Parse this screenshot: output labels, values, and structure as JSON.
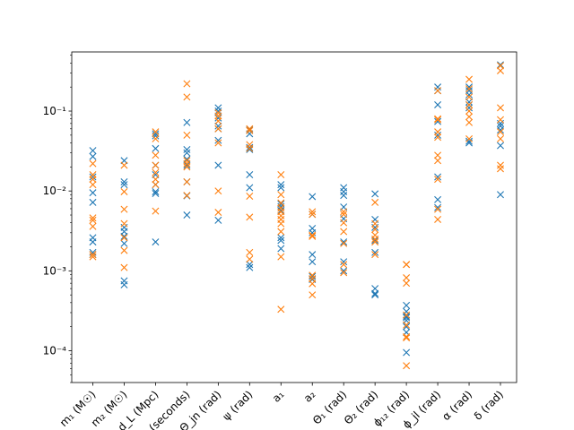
{
  "chart_data": {
    "type": "scatter",
    "title": "",
    "xlabel": "",
    "ylabel": "",
    "yscale": "log",
    "ylim": [
      4e-05,
      0.55
    ],
    "grid": false,
    "legend": "none",
    "categories": [
      "m₁ (M☉)",
      "m₂ (M☉)",
      "d_L (Mpc)",
      "t_c (seconds)",
      "Θ_jn (rad)",
      "ψ (rad)",
      "a₁",
      "a₂",
      "Θ₁ (rad)",
      "Θ₂ (rad)",
      "ϕ₁₂ (rad)",
      "ϕ_jl (rad)",
      "α (rad)",
      "δ (rad)"
    ],
    "ytick_labels": [
      {
        "value": 0.0001,
        "label": "10⁻⁴"
      },
      {
        "value": 0.001,
        "label": "10⁻³"
      },
      {
        "value": 0.01,
        "label": "10⁻²"
      },
      {
        "value": 0.1,
        "label": "10⁻¹"
      }
    ],
    "series": [
      {
        "color": "#1f77b4",
        "points": [
          [
            [
              0.032,
              0.027,
              0.015,
              0.0095,
              0.0072,
              0.0026,
              0.0023,
              0.0017,
              0.0016
            ]
          ],
          [
            [
              0.024,
              0.013,
              0.012,
              0.0035,
              0.0031,
              0.0027,
              0.0022,
              0.00075,
              0.00067
            ]
          ],
          [
            [
              0.052,
              0.049,
              0.034,
              0.021,
              0.016,
              0.012,
              0.0098,
              0.0093,
              0.0023
            ]
          ],
          [
            [
              0.072,
              0.033,
              0.03,
              0.025,
              0.021,
              0.013,
              0.0087,
              0.005
            ]
          ],
          [
            [
              0.11,
              0.1,
              0.082,
              0.065,
              0.06,
              0.043,
              0.021,
              0.0043
            ]
          ],
          [
            [
              0.058,
              0.052,
              0.035,
              0.033,
              0.016,
              0.011,
              0.0012,
              0.0011
            ]
          ],
          [
            [
              0.012,
              0.011,
              0.0069,
              0.0064,
              0.0057,
              0.0026,
              0.0024,
              0.0019
            ]
          ],
          [
            [
              0.0085,
              0.0051,
              0.0034,
              0.003,
              0.0016,
              0.0013,
              0.00085,
              0.00078
            ]
          ],
          [
            [
              0.011,
              0.0098,
              0.0088,
              0.0063,
              0.0045,
              0.0023,
              0.0013,
              0.001
            ]
          ],
          [
            [
              0.0092,
              0.0044,
              0.0035,
              0.0024,
              0.0017,
              0.0006,
              0.00052,
              0.0005
            ]
          ],
          [
            [
              0.00037,
              0.00031,
              0.00027,
              0.00026,
              0.00024,
              0.0002,
              0.00017,
              9.5e-05
            ]
          ],
          [
            [
              0.2,
              0.18,
              0.12,
              0.074,
              0.05,
              0.015,
              0.0078,
              0.0062
            ]
          ],
          [
            [
              0.2,
              0.18,
              0.16,
              0.13,
              0.12,
              0.11,
              0.042,
              0.04
            ]
          ],
          [
            [
              0.38,
              0.07,
              0.065,
              0.058,
              0.037,
              0.009
            ]
          ]
        ]
      },
      {
        "color": "#ff7f0e",
        "points": [
          [
            [
              0.022,
              0.016,
              0.014,
              0.012,
              0.0046,
              0.0043,
              0.0036,
              0.0016,
              0.0015
            ]
          ],
          [
            [
              0.021,
              0.0098,
              0.0059,
              0.0039,
              0.0026,
              0.0018,
              0.0011
            ]
          ],
          [
            [
              0.055,
              0.045,
              0.028,
              0.021,
              0.017,
              0.014,
              0.012,
              0.0056
            ]
          ],
          [
            [
              0.22,
              0.15,
              0.05,
              0.024,
              0.022,
              0.02,
              0.013,
              0.0088
            ]
          ],
          [
            [
              0.095,
              0.087,
              0.075,
              0.06,
              0.04,
              0.01,
              0.0054
            ]
          ],
          [
            [
              0.06,
              0.057,
              0.038,
              0.034,
              0.0086,
              0.0047,
              0.0017,
              0.0014
            ]
          ],
          [
            [
              0.016,
              0.009,
              0.0071,
              0.0061,
              0.0055,
              0.0049,
              0.0044,
              0.0039,
              0.0031,
              0.0015,
              0.00033
            ]
          ],
          [
            [
              0.0055,
              0.0051,
              0.0028,
              0.0027,
              0.00088,
              0.0008,
              0.00069,
              0.0005
            ]
          ],
          [
            [
              0.0055,
              0.0051,
              0.004,
              0.0031,
              0.0022,
              0.0012,
              0.00095
            ]
          ],
          [
            [
              0.0072,
              0.0039,
              0.0033,
              0.0028,
              0.0025,
              0.0023,
              0.0016
            ]
          ],
          [
            [
              0.0012,
              0.0012,
              0.00082,
              0.0007,
              0.00028,
              0.00021,
              0.00015,
              0.000145,
              6.5e-05
            ]
          ],
          [
            [
              0.18,
              0.08,
              0.078,
              0.055,
              0.047,
              0.028,
              0.024,
              0.014,
              0.0059,
              0.0044
            ]
          ],
          [
            [
              0.25,
              0.19,
              0.15,
              0.12,
              0.1,
              0.085,
              0.072,
              0.045
            ]
          ],
          [
            [
              0.37,
              0.32,
              0.11,
              0.078,
              0.055,
              0.045,
              0.021,
              0.019
            ]
          ]
        ]
      }
    ]
  }
}
